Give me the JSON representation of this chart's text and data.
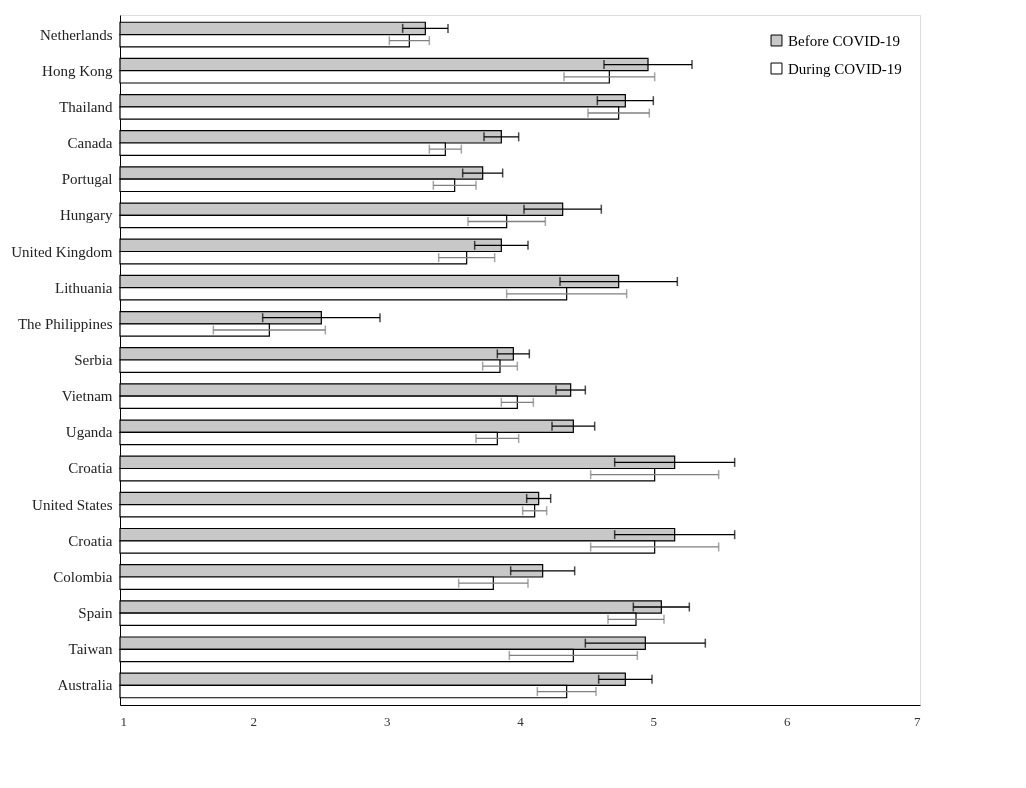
{
  "chart_data": {
    "type": "bar",
    "orientation": "horizontal",
    "categories": [
      "Netherlands",
      "Hong Kong",
      "Thailand",
      "Canada",
      "Portugal",
      "Hungary",
      "United Kingdom",
      "Lithuania",
      "The Philippines",
      "Serbia",
      "Vietnam",
      "Uganda",
      "Croatia",
      "United States",
      "Croatia",
      "Colombia",
      "Spain",
      "Taiwan",
      "Australia"
    ],
    "series": [
      {
        "name": "Before COVID-19",
        "color": "#c8c8c8",
        "values": [
          3.29,
          4.96,
          4.79,
          3.86,
          3.72,
          4.32,
          3.86,
          4.74,
          2.51,
          3.95,
          4.38,
          4.4,
          5.16,
          4.14,
          5.16,
          4.17,
          5.06,
          4.94,
          4.79
        ],
        "errors": [
          0.17,
          0.33,
          0.21,
          0.13,
          0.15,
          0.29,
          0.2,
          0.44,
          0.44,
          0.12,
          0.11,
          0.16,
          0.45,
          0.09,
          0.45,
          0.24,
          0.21,
          0.45,
          0.2
        ]
      },
      {
        "name": "During COVID-19",
        "color": "#ffffff",
        "values": [
          3.17,
          4.67,
          4.74,
          3.44,
          3.51,
          3.9,
          3.6,
          4.35,
          2.12,
          3.85,
          3.98,
          3.83,
          5.01,
          4.11,
          5.01,
          3.8,
          4.87,
          4.4,
          4.35
        ],
        "errors": [
          0.15,
          0.34,
          0.23,
          0.12,
          0.16,
          0.29,
          0.21,
          0.45,
          0.42,
          0.13,
          0.12,
          0.16,
          0.48,
          0.09,
          0.48,
          0.26,
          0.21,
          0.48,
          0.22
        ]
      }
    ],
    "xlim": [
      1,
      7
    ],
    "xticks": [
      1,
      2,
      3,
      4,
      5,
      6,
      7
    ],
    "grid": false,
    "legend": "top right"
  }
}
